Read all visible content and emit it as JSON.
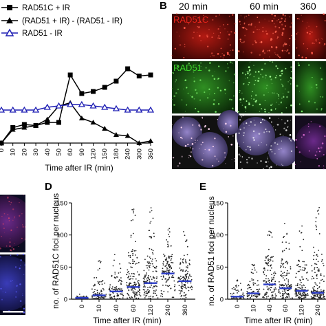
{
  "panel_letters": {
    "b": "B",
    "d": "D",
    "e": "E"
  },
  "panel_a": {
    "legend": [
      {
        "label": "RAD51C + IR",
        "color": "#000000",
        "marker": "square"
      },
      {
        "label": "(RAD51 + IR) - (RAD51 - IR)",
        "color": "#000000",
        "marker": "triangle"
      },
      {
        "label": "RAD51 - IR",
        "color": "#1f1fb4",
        "marker": "triangle-open"
      }
    ],
    "xlabel": "Time after IR (min)"
  },
  "panel_b": {
    "time_headers": [
      "20 min",
      "60 min",
      "360"
    ],
    "row_labels": [
      "RAD51C",
      "RAD51"
    ]
  },
  "panel_d": {
    "ylabel": "no. of RAD51C foci per nucleus",
    "xlabel": "Time after IR (min)"
  },
  "panel_e": {
    "ylabel": "no. of RAD51 foci per nucleus",
    "xlabel": "Time after IR (min)"
  },
  "chart_data": [
    {
      "type": "line",
      "x": [
        "0",
        "10",
        "20",
        "30",
        "40",
        "50",
        "60",
        "90",
        "120",
        "150",
        "180",
        "240",
        "300",
        "360"
      ],
      "series": [
        {
          "name": "RAD51C + IR",
          "color": "#000000",
          "values": [
            0,
            0.75,
            0.9,
            0.85,
            1.0,
            1.0,
            3.3,
            2.4,
            2.5,
            2.7,
            3.0,
            3.6,
            3.25,
            3.3
          ]
        },
        {
          "name": "(RAD51 + IR) - (RAD51 - IR)",
          "color": "#000000",
          "values": [
            0,
            0.65,
            0.75,
            0.85,
            1.15,
            1.8,
            1.95,
            1.2,
            1.0,
            0.7,
            0.4,
            0.35,
            0.0,
            0.1
          ]
        },
        {
          "name": "RAD51 - IR",
          "color": "#1f1fb4",
          "values": [
            0.1,
            0.1,
            0.1,
            0.1,
            0.2,
            0.25,
            0.3,
            0.3,
            0.25,
            0.2,
            0.15,
            0.1,
            0.1,
            0.1
          ]
        }
      ],
      "xlabel": "Time after IR (min)",
      "ylabel": ""
    },
    {
      "type": "scatter",
      "categories": [
        "0",
        "10",
        "40",
        "60",
        "120",
        "240",
        "360"
      ],
      "ylim": [
        0,
        150
      ],
      "yticks": [
        0,
        50,
        100,
        150
      ],
      "medians": [
        2,
        6,
        12,
        19,
        25,
        40,
        28
      ],
      "maxima": [
        8,
        62,
        80,
        142,
        145,
        112,
        108
      ],
      "ylabel": "no. of RAD51C foci per nucleus",
      "xlabel": "Time after IR (min)"
    },
    {
      "type": "scatter",
      "categories": [
        "0",
        "10",
        "40",
        "60",
        "120",
        "240"
      ],
      "ylim": [
        0,
        150
      ],
      "yticks": [
        0,
        50,
        100,
        150
      ],
      "medians": [
        4,
        9,
        23,
        17,
        13,
        10
      ],
      "maxima": [
        33,
        58,
        122,
        122,
        120,
        150
      ],
      "ylabel": "no. of RAD51 foci per nucleus",
      "xlabel": "Time after IR (min)"
    }
  ]
}
